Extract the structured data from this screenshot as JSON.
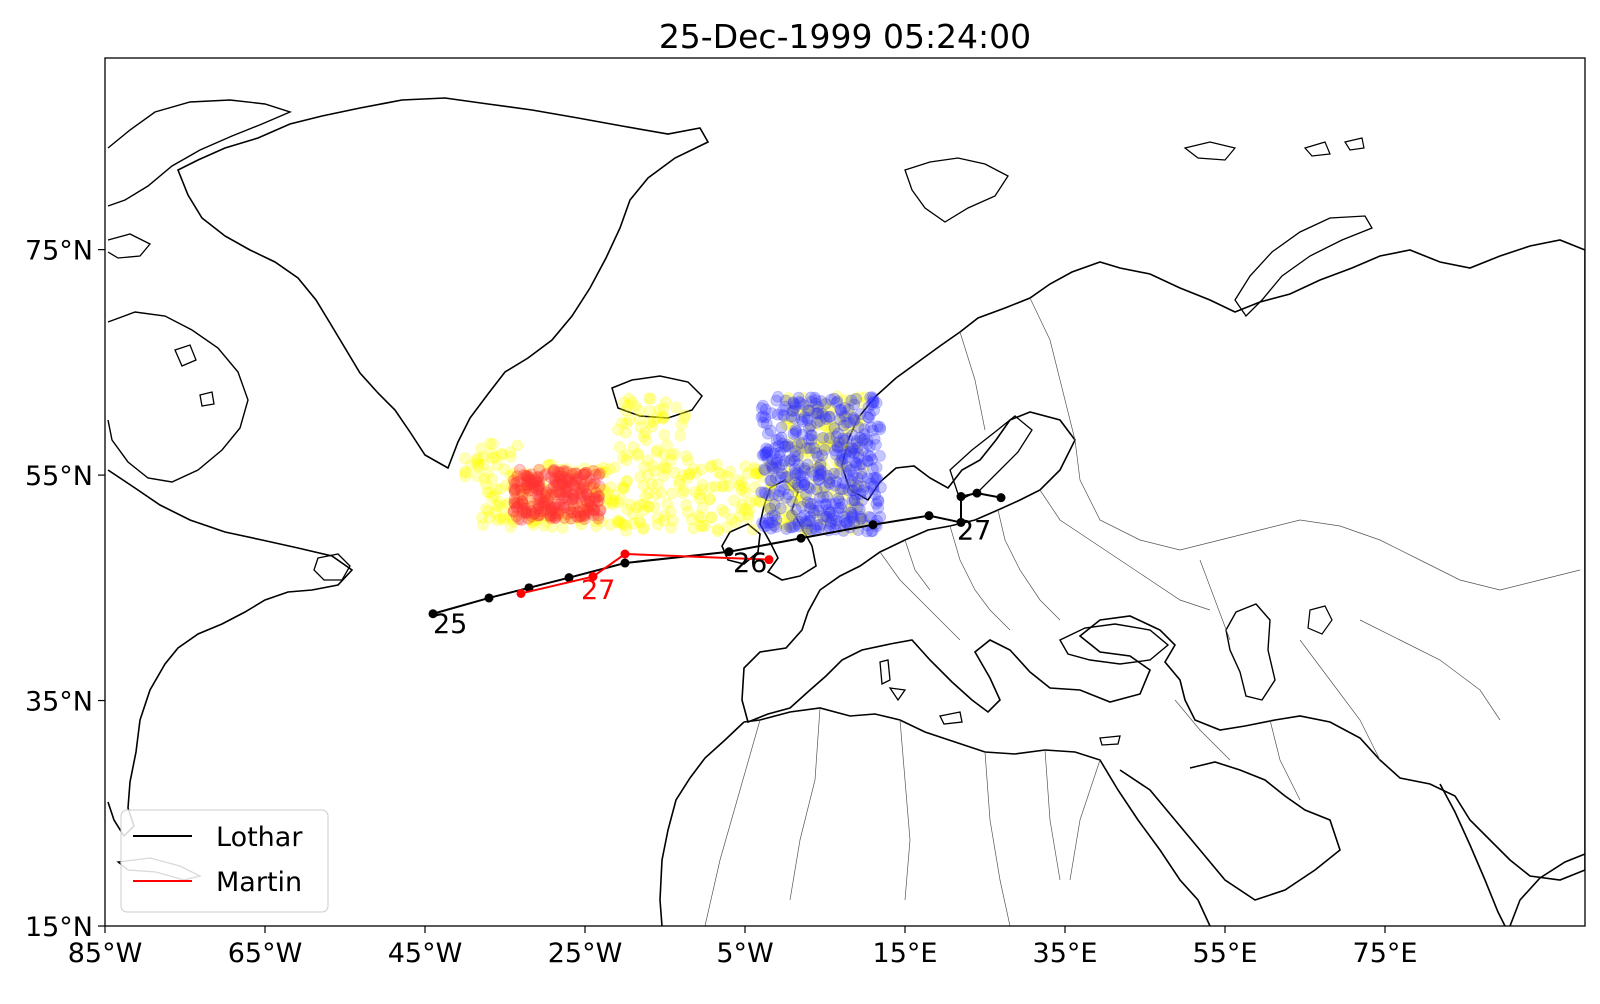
{
  "title": "25-Dec-1999 05:24:00",
  "colors": {
    "lothar": "#000000",
    "martin": "#ff0000",
    "cloud_yellow": "#ffff00",
    "cloud_red": "#ff3333",
    "cloud_blue": "#3333ff",
    "coast": "#000000",
    "borders": "#555555"
  },
  "chart_data": {
    "type": "map",
    "projection": "plate-carree",
    "xlim": [
      -85,
      100
    ],
    "ylim": [
      15,
      92
    ],
    "x_ticks": [
      -85,
      -65,
      -45,
      -25,
      -5,
      15,
      35,
      55,
      75
    ],
    "x_tick_labels": [
      "85°W",
      "65°W",
      "45°W",
      "25°W",
      "5°W",
      "15°E",
      "35°E",
      "55°E",
      "75°E"
    ],
    "y_ticks": [
      15,
      35,
      55,
      75
    ],
    "y_tick_labels": [
      "15°N",
      "35°N",
      "55°N",
      "75°N"
    ],
    "legend": {
      "placement": "lower-left",
      "entries": [
        "Lothar",
        "Martin"
      ]
    },
    "series": [
      {
        "name": "Lothar",
        "color": "#000000",
        "lon": [
          -44,
          -37,
          -32,
          -27,
          -20,
          -7,
          2,
          11,
          18,
          22,
          22,
          24,
          27
        ],
        "lat": [
          42.7,
          44.1,
          45.0,
          45.9,
          47.2,
          48.2,
          49.4,
          50.6,
          51.4,
          50.8,
          53.1,
          53.4,
          53.0
        ]
      },
      {
        "name": "Martin",
        "color": "#ff0000",
        "lon": [
          -33,
          -24,
          -20,
          -2
        ],
        "lat": [
          44.5,
          46.0,
          48.0,
          47.5
        ]
      }
    ],
    "annotations": [
      {
        "text": "25",
        "lon": -44,
        "lat": 41.0,
        "color": "#000000"
      },
      {
        "text": "26",
        "lon": -6.5,
        "lat": 46.4,
        "color": "#000000"
      },
      {
        "text": "27",
        "lon": 21.5,
        "lat": 49.3,
        "color": "#000000"
      },
      {
        "text": "27",
        "lon": -25.5,
        "lat": 44.0,
        "color": "#ff0000"
      }
    ],
    "clouds": [
      {
        "name": "yellow",
        "color": "#ffff00",
        "opacity": 0.28,
        "lon_range": [
          -40,
          10
        ],
        "lat_range": [
          48,
          62
        ]
      },
      {
        "name": "red",
        "color": "#ff3333",
        "opacity": 0.28,
        "lon_range": [
          -34,
          -23
        ],
        "lat_range": [
          51,
          55.5
        ]
      },
      {
        "name": "blue",
        "color": "#3333ff",
        "opacity": 0.28,
        "lon_range": [
          -3,
          12
        ],
        "lat_range": [
          50,
          62
        ]
      }
    ]
  }
}
